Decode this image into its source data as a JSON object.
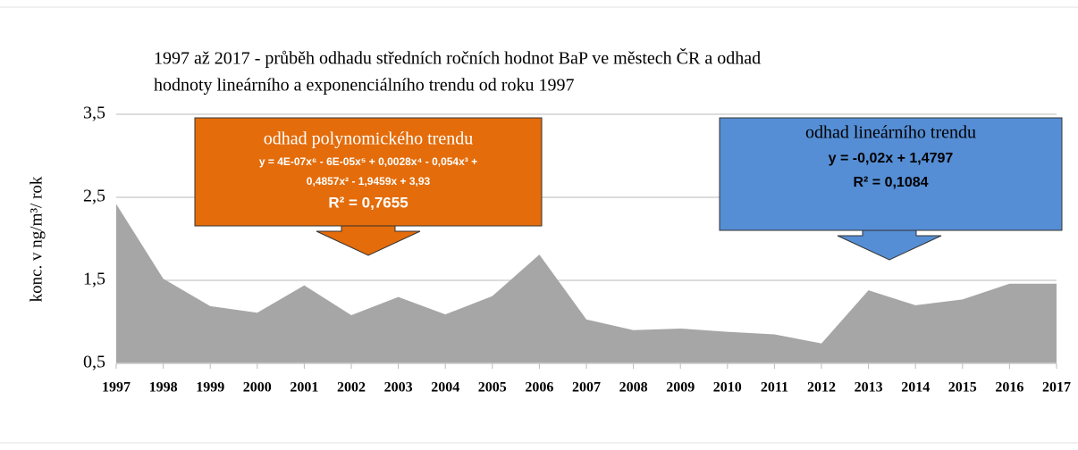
{
  "chart_data": {
    "type": "area",
    "title": [
      "1997 až 2017 - průběh odhadu středních ročních hodnot BaP ve městech ČR a odhad",
      "hodnoty lineárního a exponenciálního trendu od roku 1997"
    ],
    "y_label": "konc. v ng/m³/ rok",
    "categories": [
      "1997",
      "1998",
      "1999",
      "2000",
      "2001",
      "2002",
      "2003",
      "2004",
      "2005",
      "2006",
      "2007",
      "2008",
      "2009",
      "2010",
      "2011",
      "2012",
      "2013",
      "2014",
      "2015",
      "2016",
      "2017"
    ],
    "values": [
      2.42,
      1.52,
      1.19,
      1.11,
      1.44,
      1.08,
      1.3,
      1.09,
      1.31,
      1.81,
      1.03,
      0.9,
      0.92,
      0.88,
      0.85,
      0.74,
      1.38,
      1.2,
      1.27,
      1.46,
      1.46
    ],
    "color": "#a6a6a6",
    "ylim": [
      0.5,
      3.5
    ],
    "yticks": [
      {
        "value": 0.5,
        "label": "0,5"
      },
      {
        "value": 1.5,
        "label": "1,5"
      },
      {
        "value": 2.5,
        "label": "2,5"
      },
      {
        "value": 3.5,
        "label": "3,5"
      }
    ],
    "grid": true,
    "annotations": [
      {
        "color": "#e46c0a",
        "lines": [
          "odhad polynomického trendu",
          "y = 4E-07x⁶ - 6E-05x⁵ + 0,0028x⁴ - 0,054x³ +",
          "0,4857x² - 1,9459x + 3,93",
          "R² = 0,7655"
        ]
      },
      {
        "color": "#558ed5",
        "lines": [
          "odhad lineárního trendu",
          "y = -0,02x + 1,4797",
          "R² = 0,1084"
        ]
      }
    ]
  }
}
